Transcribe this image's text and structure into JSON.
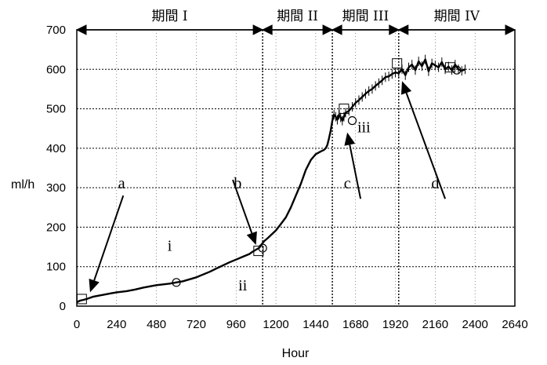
{
  "chart_data": {
    "type": "line",
    "xlabel": "Hour",
    "ylabel": "ml/h",
    "xlim": [
      0,
      2640
    ],
    "ylim": [
      0,
      700
    ],
    "x_ticks": [
      "0",
      "240",
      "480",
      "720",
      "960",
      "1200",
      "1440",
      "1680",
      "1920",
      "2160",
      "2400",
      "2640"
    ],
    "x_tick_values": [
      0,
      240,
      480,
      720,
      960,
      1200,
      1440,
      1680,
      1920,
      2160,
      2400,
      2640
    ],
    "y_ticks": [
      "0",
      "100",
      "200",
      "300",
      "400",
      "500",
      "600",
      "700"
    ],
    "y_tick_values": [
      0,
      100,
      200,
      300,
      400,
      500,
      600,
      700
    ],
    "grid": true,
    "periods": [
      {
        "label": "期間 I",
        "start": 0,
        "end": 1120
      },
      {
        "label": "期間 II",
        "start": 1120,
        "end": 1540
      },
      {
        "label": "期間 III",
        "start": 1540,
        "end": 1940
      },
      {
        "label": "期間 IV",
        "start": 1940,
        "end": 2640
      }
    ],
    "period_boundaries": [
      1120,
      1540,
      1940
    ],
    "series": [
      {
        "x": [
          0,
          20,
          40,
          60,
          80,
          100,
          150,
          200,
          240,
          300,
          350,
          400,
          450,
          480,
          520,
          560,
          600,
          640,
          680,
          720,
          760,
          800,
          840,
          880,
          920,
          960,
          1000,
          1040,
          1060,
          1080,
          1100,
          1120,
          1130,
          1150,
          1170,
          1200,
          1230,
          1260,
          1290,
          1320,
          1350,
          1380,
          1410,
          1440,
          1470,
          1490,
          1500,
          1510,
          1520,
          1530,
          1540,
          1550,
          1560,
          1570,
          1580,
          1590,
          1600,
          1610,
          1620,
          1640,
          1660,
          1680,
          1700,
          1720,
          1740,
          1760,
          1780,
          1800,
          1820,
          1840,
          1860,
          1880,
          1900,
          1920,
          1940,
          1960,
          1980,
          2000,
          2020,
          2040,
          2060,
          2080,
          2100,
          2120,
          2140,
          2160,
          2180,
          2200,
          2220,
          2240,
          2260,
          2280,
          2300,
          2320,
          2340
        ],
        "values": [
          10,
          14,
          16,
          18,
          21,
          24,
          28,
          32,
          35,
          38,
          42,
          47,
          51,
          53,
          55,
          57,
          60,
          63,
          68,
          73,
          80,
          87,
          95,
          103,
          111,
          118,
          125,
          132,
          138,
          143,
          148,
          160,
          165,
          172,
          180,
          192,
          208,
          225,
          250,
          280,
          310,
          345,
          370,
          385,
          392,
          396,
          400,
          408,
          425,
          445,
          470,
          485,
          480,
          472,
          485,
          478,
          470,
          480,
          490,
          495,
          505,
          515,
          522,
          530,
          538,
          545,
          550,
          558,
          565,
          572,
          580,
          582,
          588,
          592,
          590,
          600,
          585,
          605,
          612,
          598,
          620,
          608,
          625,
          595,
          615,
          610,
          605,
          618,
          600,
          607,
          598,
          612,
          600,
          596,
          600
        ]
      }
    ],
    "markers": [
      {
        "shape": "square",
        "x": 30,
        "y": 18
      },
      {
        "shape": "circle",
        "x": 600,
        "y": 60
      },
      {
        "shape": "square",
        "x": 1095,
        "y": 140
      },
      {
        "shape": "circle",
        "x": 1120,
        "y": 147
      },
      {
        "shape": "square",
        "x": 1610,
        "y": 500
      },
      {
        "shape": "circle",
        "x": 1660,
        "y": 470
      },
      {
        "shape": "square",
        "x": 1930,
        "y": 615
      },
      {
        "shape": "square",
        "x": 2250,
        "y": 605
      },
      {
        "shape": "circle",
        "x": 2290,
        "y": 598
      }
    ],
    "labels": [
      {
        "text": "a",
        "x": 270,
        "y": 298
      },
      {
        "text": "b",
        "x": 970,
        "y": 298
      },
      {
        "text": "c",
        "x": 1630,
        "y": 298
      },
      {
        "text": "d",
        "x": 2160,
        "y": 298
      },
      {
        "text": "i",
        "x": 560,
        "y": 140
      },
      {
        "text": "ii",
        "x": 1000,
        "y": 40
      },
      {
        "text": "iii",
        "x": 1730,
        "y": 440
      }
    ],
    "arrows": [
      {
        "from": [
          280,
          280
        ],
        "to": [
          80,
          35
        ]
      },
      {
        "from": [
          940,
          320
        ],
        "to": [
          1080,
          155
        ]
      },
      {
        "from": [
          1710,
          272
        ],
        "to": [
          1630,
          440
        ]
      },
      {
        "from": [
          2220,
          272
        ],
        "to": [
          1960,
          570
        ]
      }
    ]
  }
}
